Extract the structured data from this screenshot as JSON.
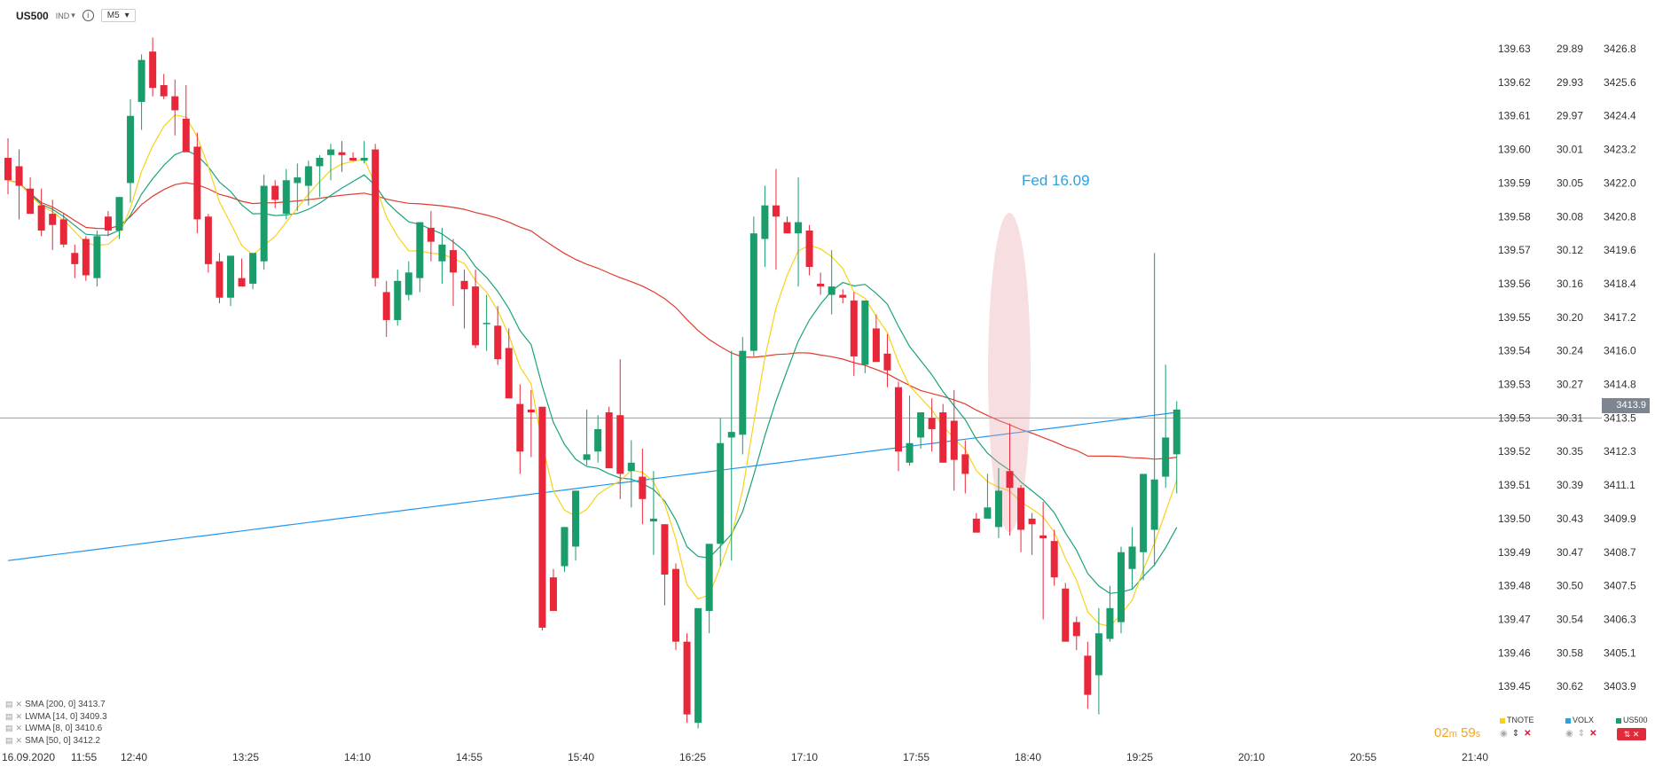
{
  "header": {
    "symbol": "US500",
    "type_badge": "IND",
    "timeframe": "M5"
  },
  "colors": {
    "bull": "#1a9c6b",
    "bear": "#e8283a",
    "sma200": "#2196f3",
    "lwma14": "#1aa37a",
    "lwma8": "#f7d21a",
    "sma50": "#e03b2e",
    "annotation": "#29a3e0",
    "timer": "#f5a623"
  },
  "legend": [
    {
      "label": "SMA [200, 0] 3413.7",
      "icon": "list-icon"
    },
    {
      "label": "LWMA [14, 0] 3409.3",
      "icon": "list-icon"
    },
    {
      "label": "LWMA [8, 0] 3410.6",
      "icon": "list-icon"
    },
    {
      "label": "SMA [50, 0] 3412.2",
      "icon": "list-icon"
    }
  ],
  "annotation": "Fed 16.09",
  "current_price": "3413.9",
  "timer": {
    "minutes": "02",
    "m": "m",
    "seconds": "59",
    "s": "s"
  },
  "overlays": [
    {
      "name": "TNOTE",
      "color": "#f7d21a"
    },
    {
      "name": "VOLX",
      "color": "#29a3e0"
    },
    {
      "name": "US500",
      "color": "#1a9c6b"
    }
  ],
  "chart_data": {
    "type": "candlestick",
    "x_tick_labels": [
      "16.09.2020",
      "11:55",
      "12:40",
      "13:25",
      "14:10",
      "14:55",
      "15:40",
      "16:25",
      "17:10",
      "17:55",
      "18:40",
      "19:25",
      "20:10",
      "20:55",
      "21:40"
    ],
    "y_axis_tnote": [
      "139.63",
      "139.62",
      "139.61",
      "139.60",
      "139.59",
      "139.58",
      "139.57",
      "139.56",
      "139.55",
      "139.54",
      "139.53",
      "139.53",
      "139.52",
      "139.51",
      "139.50",
      "139.49",
      "139.48",
      "139.47",
      "139.46",
      "139.45"
    ],
    "y_axis_volx": [
      "29.89",
      "29.93",
      "29.97",
      "30.01",
      "30.05",
      "30.08",
      "30.12",
      "30.16",
      "30.20",
      "30.24",
      "30.27",
      "30.31",
      "30.35",
      "30.39",
      "30.43",
      "30.47",
      "30.50",
      "30.54",
      "30.58",
      "30.62"
    ],
    "y_axis_us500": [
      "3426.8",
      "3425.6",
      "3424.4",
      "3423.2",
      "3422.0",
      "3420.8",
      "3419.6",
      "3418.4",
      "3417.2",
      "3416.0",
      "3414.8",
      "3413.5",
      "3412.3",
      "3411.1",
      "3409.9",
      "3408.7",
      "3407.5",
      "3406.3",
      "3405.1",
      "3403.9"
    ],
    "y_range_us500": [
      3402.4,
      3428.2
    ],
    "candles_ohlc": [
      [
        3422.9,
        3423.6,
        3421.6,
        3422.1
      ],
      [
        3422.6,
        3423.2,
        3420.7,
        3421.9
      ],
      [
        3421.8,
        3422.2,
        3420.9,
        3420.9
      ],
      [
        3421.2,
        3421.8,
        3420.1,
        3420.3
      ],
      [
        3420.9,
        3421.4,
        3419.6,
        3420.5
      ],
      [
        3420.7,
        3420.9,
        3419.7,
        3419.8
      ],
      [
        3419.5,
        3419.8,
        3418.6,
        3419.1
      ],
      [
        3420.0,
        3420.1,
        3418.5,
        3418.7
      ],
      [
        3418.6,
        3420.3,
        3418.3,
        3420.1
      ],
      [
        3420.8,
        3421.0,
        3420.1,
        3420.3
      ],
      [
        3420.3,
        3421.3,
        3420.0,
        3421.5
      ],
      [
        3422.0,
        3425.0,
        3421.3,
        3424.4
      ],
      [
        3424.9,
        3426.6,
        3423.9,
        3426.4
      ],
      [
        3426.7,
        3427.2,
        3425.1,
        3425.4
      ],
      [
        3425.5,
        3425.9,
        3425.0,
        3425.1
      ],
      [
        3425.1,
        3425.7,
        3423.7,
        3424.6
      ],
      [
        3424.3,
        3425.5,
        3423.4,
        3423.1
      ],
      [
        3423.3,
        3423.8,
        3420.2,
        3420.7
      ],
      [
        3420.8,
        3420.9,
        3418.8,
        3419.1
      ],
      [
        3419.2,
        3419.5,
        3417.7,
        3417.9
      ],
      [
        3417.9,
        3419.4,
        3417.6,
        3419.4
      ],
      [
        3418.6,
        3419.3,
        3418.5,
        3418.3
      ],
      [
        3418.4,
        3419.1,
        3418.2,
        3419.5
      ],
      [
        3419.2,
        3422.3,
        3418.9,
        3421.9
      ],
      [
        3421.9,
        3422.1,
        3421.1,
        3421.4
      ],
      [
        3420.9,
        3422.5,
        3420.7,
        3422.1
      ],
      [
        3422.0,
        3422.7,
        3421.0,
        3422.2
      ],
      [
        3421.9,
        3422.8,
        3421.2,
        3422.6
      ],
      [
        3422.6,
        3423.0,
        3421.5,
        3422.9
      ],
      [
        3423.0,
        3423.4,
        3422.1,
        3423.2
      ],
      [
        3423.1,
        3423.5,
        3422.4,
        3423.0
      ],
      [
        3422.9,
        3423.1,
        3422.8,
        3422.8
      ],
      [
        3422.8,
        3423.5,
        3422.7,
        3422.9
      ],
      [
        3423.2,
        3423.4,
        3418.3,
        3418.6
      ],
      [
        3418.1,
        3418.5,
        3416.5,
        3417.1
      ],
      [
        3417.1,
        3418.9,
        3416.9,
        3418.5
      ],
      [
        3418.0,
        3419.2,
        3417.8,
        3418.8
      ],
      [
        3418.6,
        3420.6,
        3418.1,
        3420.6
      ],
      [
        3420.4,
        3421.0,
        3419.2,
        3419.9
      ],
      [
        3419.2,
        3420.4,
        3418.4,
        3419.8
      ],
      [
        3419.6,
        3420.0,
        3417.6,
        3418.8
      ],
      [
        3418.5,
        3418.9,
        3416.8,
        3418.2
      ],
      [
        3418.3,
        3418.9,
        3416.1,
        3416.2
      ],
      [
        3417.0,
        3418.0,
        3416.0,
        3417.0
      ],
      [
        3416.9,
        3417.6,
        3415.5,
        3415.7
      ],
      [
        3416.1,
        3416.8,
        3414.4,
        3414.3
      ],
      [
        3414.1,
        3414.8,
        3411.6,
        3412.4
      ],
      [
        3413.9,
        3414.6,
        3412.2,
        3413.8
      ],
      [
        3414.0,
        3414.0,
        3406.0,
        3406.1
      ],
      [
        3407.9,
        3408.2,
        3407.0,
        3406.7
      ],
      [
        3408.3,
        3409.7,
        3408.1,
        3409.7
      ],
      [
        3409.0,
        3410.6,
        3408.5,
        3411.0
      ],
      [
        3412.1,
        3413.9,
        3411.9,
        3412.3
      ],
      [
        3412.4,
        3413.7,
        3412.0,
        3413.2
      ],
      [
        3413.8,
        3414.0,
        3411.9,
        3411.8
      ],
      [
        3413.7,
        3415.7,
        3410.7,
        3411.6
      ],
      [
        3411.7,
        3412.8,
        3410.4,
        3412.0
      ],
      [
        3411.5,
        3412.5,
        3409.8,
        3410.7
      ],
      [
        3409.9,
        3411.7,
        3408.7,
        3410.0
      ],
      [
        3409.8,
        3409.8,
        3406.9,
        3408.0
      ],
      [
        3408.2,
        3408.4,
        3405.3,
        3405.6
      ],
      [
        3405.6,
        3405.9,
        3402.7,
        3403.0
      ],
      [
        3402.7,
        3406.6,
        3402.5,
        3406.8
      ],
      [
        3406.7,
        3408.9,
        3405.9,
        3409.1
      ],
      [
        3409.1,
        3413.6,
        3408.3,
        3412.7
      ],
      [
        3412.9,
        3416.0,
        3408.5,
        3413.1
      ],
      [
        3413.0,
        3416.5,
        3412.3,
        3416.0
      ],
      [
        3416.0,
        3420.8,
        3415.8,
        3420.2
      ],
      [
        3420.0,
        3421.9,
        3419.0,
        3421.2
      ],
      [
        3421.2,
        3422.5,
        3418.9,
        3420.8
      ],
      [
        3420.6,
        3420.8,
        3420.4,
        3420.2
      ],
      [
        3420.2,
        3422.2,
        3418.3,
        3420.6
      ],
      [
        3420.3,
        3420.5,
        3418.7,
        3419.0
      ],
      [
        3418.4,
        3418.8,
        3418.0,
        3418.3
      ],
      [
        3418.0,
        3419.6,
        3417.3,
        3418.3
      ],
      [
        3418.0,
        3418.2,
        3417.7,
        3417.9
      ],
      [
        3417.8,
        3418.1,
        3415.1,
        3415.8
      ],
      [
        3415.5,
        3417.6,
        3415.2,
        3417.8
      ],
      [
        3416.8,
        3417.3,
        3415.6,
        3415.6
      ],
      [
        3415.9,
        3416.6,
        3414.7,
        3415.3
      ],
      [
        3414.7,
        3414.9,
        3411.7,
        3412.4
      ],
      [
        3412.0,
        3414.4,
        3411.9,
        3412.7
      ],
      [
        3412.9,
        3413.1,
        3412.5,
        3413.8
      ],
      [
        3413.6,
        3414.3,
        3412.4,
        3413.2
      ],
      [
        3413.8,
        3414.1,
        3412.1,
        3412.0
      ],
      [
        3413.5,
        3414.6,
        3411.0,
        3412.1
      ],
      [
        3412.3,
        3412.8,
        3410.9,
        3411.6
      ],
      [
        3410.0,
        3410.2,
        3409.7,
        3409.5
      ],
      [
        3410.0,
        3411.6,
        3410.1,
        3410.4
      ],
      [
        3409.7,
        3411.8,
        3409.3,
        3411.0
      ],
      [
        3411.7,
        3413.4,
        3409.4,
        3411.1
      ],
      [
        3411.1,
        3411.2,
        3408.8,
        3409.6
      ],
      [
        3410.0,
        3410.2,
        3408.7,
        3409.8
      ],
      [
        3409.4,
        3410.6,
        3406.4,
        3409.3
      ],
      [
        3409.2,
        3409.6,
        3407.6,
        3407.9
      ],
      [
        3407.5,
        3407.7,
        3405.6,
        3405.6
      ],
      [
        3406.3,
        3406.5,
        3405.3,
        3405.8
      ],
      [
        3405.1,
        3405.6,
        3403.2,
        3403.7
      ],
      [
        3404.4,
        3406.8,
        3403.0,
        3405.9
      ],
      [
        3405.7,
        3407.6,
        3405.6,
        3406.8
      ],
      [
        3406.3,
        3409.0,
        3405.9,
        3408.8
      ],
      [
        3408.2,
        3409.7,
        3407.5,
        3409.0
      ],
      [
        3408.8,
        3411.6,
        3407.8,
        3411.6
      ],
      [
        3409.6,
        3419.5,
        3408.3,
        3411.4
      ],
      [
        3411.5,
        3415.5,
        3411.1,
        3412.9
      ],
      [
        3412.3,
        3414.2,
        3410.9,
        3413.9
      ]
    ]
  }
}
